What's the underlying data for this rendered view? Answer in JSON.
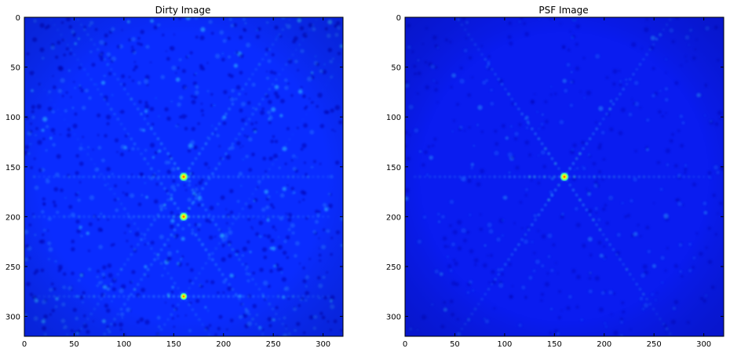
{
  "chart_data": [
    {
      "type": "heatmap",
      "title": "Dirty Image",
      "colormap": "jet",
      "background_color": "#0a2cff",
      "xlim": [
        0,
        320
      ],
      "ylim": [
        320,
        0
      ],
      "xticks": [
        0,
        50,
        100,
        150,
        200,
        250,
        300
      ],
      "yticks": [
        0,
        50,
        100,
        150,
        200,
        250,
        300
      ],
      "peaks": [
        {
          "x": 160,
          "y": 160,
          "intensity": 1.0
        },
        {
          "x": 160,
          "y": 200,
          "intensity": 0.95
        },
        {
          "x": 160,
          "y": 280,
          "intensity": 0.5
        }
      ],
      "streak_rows": [
        160,
        200,
        280
      ]
    },
    {
      "type": "heatmap",
      "title": "PSF Image",
      "colormap": "jet",
      "background_color": "#0a1cf0",
      "xlim": [
        0,
        320
      ],
      "ylim": [
        320,
        0
      ],
      "xticks": [
        0,
        50,
        100,
        150,
        200,
        250,
        300
      ],
      "yticks": [
        0,
        50,
        100,
        150,
        200,
        250,
        300
      ],
      "peaks": [
        {
          "x": 160,
          "y": 160,
          "intensity": 1.0
        }
      ],
      "streak_rows": [
        160
      ]
    }
  ]
}
